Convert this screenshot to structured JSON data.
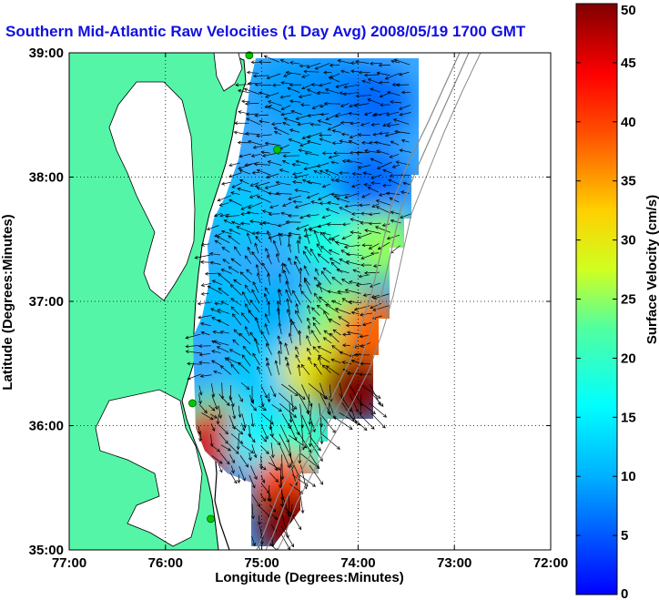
{
  "colors": {
    "land": "#55F5A8",
    "coast": "#000000",
    "grid": "#000000",
    "title": "#1010E0",
    "station": "#00C800",
    "bathymetry": "#888888"
  },
  "chart_data": {
    "type": "heatmap",
    "title": "Southern Mid-Atlantic Raw Velocities (1 Day Avg) 2008/05/19 1700 GMT",
    "xlabel": "Longitude (Degrees:Minutes)",
    "ylabel": "Latitude (Degrees:Minutes)",
    "xlim": [
      -77,
      -72
    ],
    "ylim": [
      35,
      39
    ],
    "x_tick_values": [
      -77,
      -76,
      -75,
      -74,
      -73,
      -72
    ],
    "x_tick_labels": [
      "77:00",
      "76:00",
      "75:00",
      "74:00",
      "73:00",
      "72:00"
    ],
    "y_tick_values": [
      35,
      36,
      37,
      38,
      39
    ],
    "y_tick_labels": [
      "35:00",
      "36:00",
      "37:00",
      "38:00",
      "39:00"
    ],
    "grid": true,
    "colorbar": {
      "label": "Surface Velocity (cm/s)",
      "range": [
        0,
        50
      ],
      "tick_values": [
        0,
        5,
        10,
        15,
        20,
        25,
        30,
        35,
        40,
        45,
        50
      ],
      "tick_labels": [
        "0",
        "5",
        "10",
        "15",
        "20",
        "25",
        "30",
        "35",
        "40",
        "45",
        "50"
      ],
      "colormap": "jet"
    },
    "stations": [
      {
        "lon": -75.13,
        "lat": 38.98
      },
      {
        "lon": -74.84,
        "lat": 38.22
      },
      {
        "lon": -75.72,
        "lat": 36.18
      },
      {
        "lon": -75.53,
        "lat": 35.25
      }
    ],
    "velocity_regions": [
      {
        "lon": -74.7,
        "lat": 38.7,
        "speed": 9
      },
      {
        "lon": -74.25,
        "lat": 38.7,
        "speed": 8
      },
      {
        "lon": -73.8,
        "lat": 38.6,
        "speed": 6
      },
      {
        "lon": -74.5,
        "lat": 38.1,
        "speed": 11
      },
      {
        "lon": -73.85,
        "lat": 37.95,
        "speed": 6
      },
      {
        "lon": -75.2,
        "lat": 37.7,
        "speed": 12
      },
      {
        "lon": -74.3,
        "lat": 37.5,
        "speed": 18
      },
      {
        "lon": -73.75,
        "lat": 37.45,
        "speed": 25
      },
      {
        "lon": -75.4,
        "lat": 37.0,
        "speed": 11
      },
      {
        "lon": -74.8,
        "lat": 36.9,
        "speed": 10
      },
      {
        "lon": -74.2,
        "lat": 36.9,
        "speed": 24
      },
      {
        "lon": -73.85,
        "lat": 36.75,
        "speed": 38
      },
      {
        "lon": -75.0,
        "lat": 36.45,
        "speed": 12
      },
      {
        "lon": -74.45,
        "lat": 36.45,
        "speed": 30
      },
      {
        "lon": -74.05,
        "lat": 36.3,
        "speed": 50
      },
      {
        "lon": -75.5,
        "lat": 36.0,
        "speed": 22
      },
      {
        "lon": -75.48,
        "lat": 35.88,
        "speed": 46
      },
      {
        "lon": -75.0,
        "lat": 35.9,
        "speed": 15
      },
      {
        "lon": -74.55,
        "lat": 35.85,
        "speed": 20
      },
      {
        "lon": -74.75,
        "lat": 35.5,
        "speed": 40
      },
      {
        "lon": -74.7,
        "lat": 35.2,
        "speed": 50
      }
    ]
  }
}
